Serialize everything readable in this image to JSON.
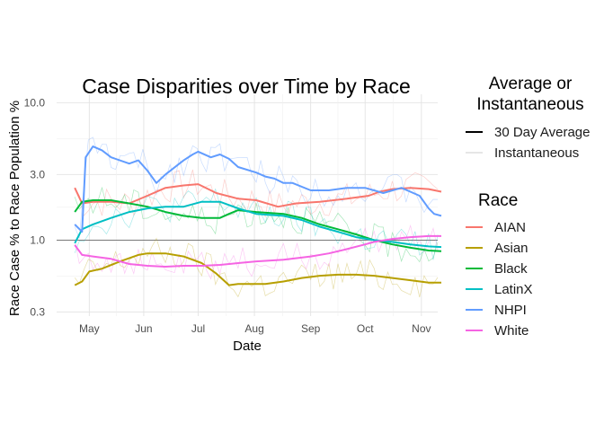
{
  "chart_data": {
    "type": "line",
    "title": "Case Disparities over Time by Race",
    "xlabel": "Date",
    "ylabel": "Race Case % to Race Population %",
    "y_scale": "log",
    "ylim": [
      0.28,
      11.5
    ],
    "y_ticks": [
      {
        "value": 0.3,
        "label": "0.3"
      },
      {
        "value": 1.0,
        "label": "1.0"
      },
      {
        "value": 3.0,
        "label": "3.0"
      },
      {
        "value": 10.0,
        "label": "10.0"
      }
    ],
    "xlim": [
      0,
      210
    ],
    "x_ticks": [
      {
        "value": 18,
        "label": "May"
      },
      {
        "value": 48,
        "label": "Jun"
      },
      {
        "value": 78,
        "label": "Jul"
      },
      {
        "value": 109,
        "label": "Aug"
      },
      {
        "value": 140,
        "label": "Sep"
      },
      {
        "value": 170,
        "label": "Oct"
      },
      {
        "value": 201,
        "label": "Nov"
      }
    ],
    "reference_line": 1.0,
    "grid": true,
    "legend_placement": "right",
    "legend_linetype": {
      "title": "Average or Instantaneous",
      "entries": [
        "30 Day Average",
        "Instantaneous"
      ]
    },
    "legend_race": {
      "title": "Race"
    },
    "series": [
      {
        "name": "AIAN",
        "color": "#F8766D",
        "x": [
          10,
          14,
          20,
          30,
          40,
          50,
          60,
          70,
          78,
          88,
          100,
          110,
          122,
          132,
          145,
          160,
          172,
          178,
          185,
          195,
          205,
          212
        ],
        "y": [
          2.4,
          1.85,
          1.9,
          1.9,
          1.85,
          2.1,
          2.4,
          2.5,
          2.55,
          2.2,
          2.0,
          1.95,
          1.75,
          1.85,
          1.9,
          2.0,
          2.1,
          2.25,
          2.35,
          2.4,
          2.35,
          2.25
        ]
      },
      {
        "name": "Asian",
        "color": "#B79F00",
        "x": [
          10,
          14,
          18,
          25,
          35,
          45,
          50,
          60,
          70,
          80,
          88,
          95,
          100,
          105,
          115,
          125,
          135,
          145,
          155,
          165,
          175,
          185,
          195,
          205,
          212
        ],
        "y": [
          0.47,
          0.5,
          0.59,
          0.62,
          0.7,
          0.78,
          0.8,
          0.8,
          0.76,
          0.68,
          0.57,
          0.47,
          0.48,
          0.48,
          0.48,
          0.5,
          0.53,
          0.55,
          0.56,
          0.56,
          0.55,
          0.53,
          0.51,
          0.49,
          0.49
        ]
      },
      {
        "name": "Black",
        "color": "#00BA38",
        "x": [
          10,
          14,
          20,
          30,
          40,
          50,
          60,
          70,
          80,
          90,
          95,
          100,
          110,
          125,
          135,
          145,
          155,
          165,
          175,
          185,
          195,
          205,
          212
        ],
        "y": [
          1.6,
          1.9,
          1.95,
          1.95,
          1.85,
          1.75,
          1.6,
          1.5,
          1.45,
          1.45,
          1.55,
          1.65,
          1.6,
          1.55,
          1.45,
          1.3,
          1.2,
          1.1,
          1.0,
          0.93,
          0.88,
          0.84,
          0.83
        ]
      },
      {
        "name": "LatinX",
        "color": "#00BFC4",
        "x": [
          10,
          14,
          20,
          30,
          40,
          50,
          60,
          70,
          80,
          90,
          100,
          110,
          125,
          135,
          145,
          155,
          165,
          175,
          185,
          195,
          205,
          212
        ],
        "y": [
          0.95,
          1.2,
          1.3,
          1.45,
          1.6,
          1.7,
          1.75,
          1.75,
          1.9,
          1.9,
          1.7,
          1.55,
          1.5,
          1.4,
          1.25,
          1.15,
          1.05,
          1.0,
          0.97,
          0.93,
          0.9,
          0.89
        ]
      },
      {
        "name": "NHPI",
        "color": "#619CFF",
        "x": [
          10,
          14,
          16,
          20,
          25,
          30,
          40,
          45,
          50,
          55,
          60,
          70,
          75,
          78,
          85,
          90,
          95,
          100,
          110,
          115,
          120,
          125,
          130,
          140,
          150,
          160,
          170,
          180,
          190,
          200,
          205,
          208,
          212
        ],
        "y": [
          1.3,
          1.15,
          4.0,
          4.8,
          4.5,
          4.0,
          3.6,
          3.8,
          3.2,
          2.6,
          3.0,
          3.8,
          4.2,
          4.4,
          4.0,
          4.2,
          3.9,
          3.4,
          3.1,
          2.9,
          2.8,
          2.6,
          2.6,
          2.3,
          2.3,
          2.4,
          2.4,
          2.2,
          2.4,
          2.1,
          1.7,
          1.55,
          1.5
        ]
      },
      {
        "name": "White",
        "color": "#F564E3",
        "x": [
          10,
          14,
          20,
          30,
          40,
          50,
          60,
          70,
          80,
          90,
          100,
          110,
          125,
          140,
          150,
          160,
          170,
          175,
          185,
          195,
          205,
          212
        ],
        "y": [
          0.92,
          0.78,
          0.76,
          0.73,
          0.67,
          0.65,
          0.64,
          0.65,
          0.65,
          0.66,
          0.68,
          0.7,
          0.72,
          0.76,
          0.8,
          0.86,
          0.93,
          0.97,
          1.02,
          1.05,
          1.07,
          1.07
        ]
      }
    ]
  }
}
